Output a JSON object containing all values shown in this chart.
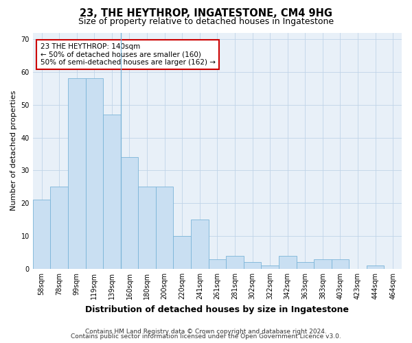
{
  "title1": "23, THE HEYTHROP, INGATESTONE, CM4 9HG",
  "title2": "Size of property relative to detached houses in Ingatestone",
  "xlabel": "Distribution of detached houses by size in Ingatestone",
  "ylabel": "Number of detached properties",
  "categories": [
    "58sqm",
    "78sqm",
    "99sqm",
    "119sqm",
    "139sqm",
    "160sqm",
    "180sqm",
    "200sqm",
    "220sqm",
    "241sqm",
    "261sqm",
    "281sqm",
    "302sqm",
    "322sqm",
    "342sqm",
    "363sqm",
    "383sqm",
    "403sqm",
    "423sqm",
    "444sqm",
    "464sqm"
  ],
  "values": [
    21,
    25,
    58,
    58,
    47,
    34,
    25,
    25,
    10,
    15,
    3,
    4,
    2,
    1,
    4,
    2,
    3,
    3,
    0,
    1,
    0
  ],
  "bar_color": "#c9dff2",
  "bar_edge_color": "#7ab4d8",
  "highlight_line_after_index": 4,
  "annotation_text": "23 THE HEYTHROP: 140sqm\n← 50% of detached houses are smaller (160)\n50% of semi-detached houses are larger (162) →",
  "annotation_box_facecolor": "white",
  "annotation_box_edgecolor": "#cc0000",
  "ylim": [
    0,
    72
  ],
  "yticks": [
    0,
    10,
    20,
    30,
    40,
    50,
    60,
    70
  ],
  "grid_color": "#c0d4e8",
  "plot_bg_color": "#e8f0f8",
  "footer1": "Contains HM Land Registry data © Crown copyright and database right 2024.",
  "footer2": "Contains public sector information licensed under the Open Government Licence v3.0.",
  "title1_fontsize": 10.5,
  "title2_fontsize": 9,
  "xlabel_fontsize": 9,
  "ylabel_fontsize": 8,
  "tick_fontsize": 7,
  "annotation_fontsize": 7.5,
  "footer_fontsize": 6.5
}
